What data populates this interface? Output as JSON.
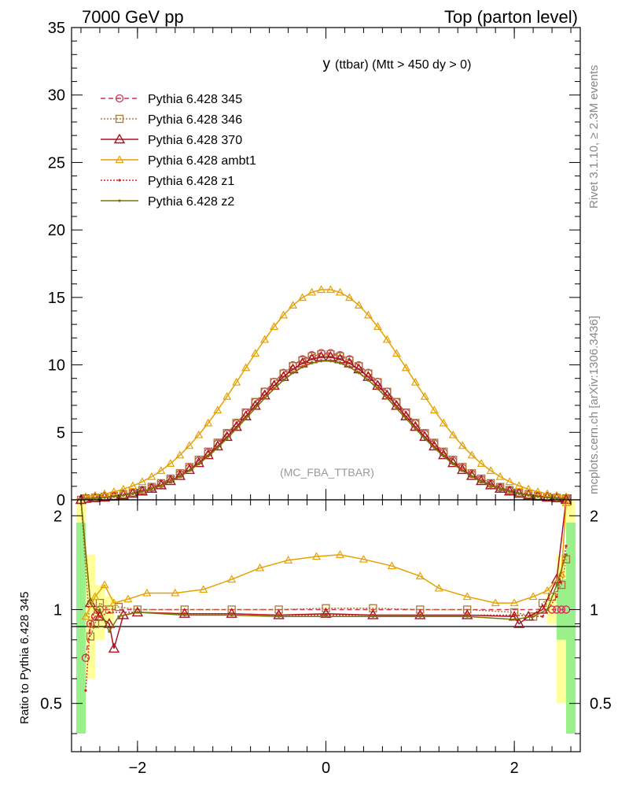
{
  "header": {
    "left": "7000 GeV pp",
    "right": "Top (parton level)"
  },
  "side_text": {
    "top": "Rivet 3.1.10, ≥ 2.3M events",
    "bottom": "mcplots.cern.ch [arXiv:1306.3436]"
  },
  "chart_data": {
    "type": "line",
    "title": "y (ttbar) (Mtt > 450 dy > 0)",
    "title_main": "y",
    "title_sub": "(ttbar) (Mtt > 450 dy > 0)",
    "watermark": "(MC_FBA_TTBAR)",
    "main_panel": {
      "ylim": [
        0,
        35
      ],
      "yticks": [
        "0",
        "5",
        "10",
        "15",
        "20",
        "25",
        "30",
        "35"
      ]
    },
    "ratio_panel": {
      "ylabel": "Ratio to Pythia 6.428 345",
      "ylim": [
        0.35,
        2.25
      ],
      "yscale": "log",
      "yticks": [
        "0.5",
        "1",
        "2"
      ]
    },
    "xlim": [
      -2.7,
      2.7
    ],
    "xticks": [
      "−2",
      "0",
      "2"
    ],
    "legend_position": "top-left",
    "series": [
      {
        "name": "Pythia 6.428 345",
        "color": "#cc3355",
        "marker": "circle-open",
        "dash": "6,4",
        "peak": 10.9,
        "sigma": 0.83,
        "ratio": [
          [
            -2.55,
            0.7
          ],
          [
            -2.5,
            0.9
          ],
          [
            -2.45,
            0.95
          ],
          [
            -2.4,
            1.0
          ],
          [
            2.4,
            1.0
          ],
          [
            2.45,
            1.0
          ],
          [
            2.5,
            1.0
          ],
          [
            2.55,
            1.0
          ]
        ]
      },
      {
        "name": "Pythia 6.428 346",
        "color": "#aa7733",
        "marker": "square-open",
        "dash": "2,2",
        "peak": 10.8,
        "sigma": 0.84,
        "ratio": [
          [
            -2.6,
            2.3
          ],
          [
            -2.5,
            0.82
          ],
          [
            -2.45,
            0.9
          ],
          [
            -2.4,
            1.05
          ],
          [
            -2.3,
            1.0
          ],
          [
            -2.2,
            1.02
          ],
          [
            -2.0,
            1.0
          ],
          [
            -1.5,
            1.0
          ],
          [
            -1.0,
            1.0
          ],
          [
            -0.5,
            1.0
          ],
          [
            0.0,
            1.01
          ],
          [
            0.5,
            1.01
          ],
          [
            1.0,
            1.0
          ],
          [
            1.5,
            1.0
          ],
          [
            2.0,
            0.98
          ],
          [
            2.2,
            0.95
          ],
          [
            2.3,
            1.05
          ],
          [
            2.4,
            1.1
          ],
          [
            2.5,
            1.2
          ],
          [
            2.55,
            1.45
          ]
        ]
      },
      {
        "name": "Pythia 6.428 370",
        "color": "#aa1122",
        "marker": "triangle-open",
        "dash": "",
        "peak": 10.6,
        "sigma": 0.82,
        "ratio": [
          [
            -2.6,
            2.3
          ],
          [
            -2.5,
            1.05
          ],
          [
            -2.4,
            0.95
          ],
          [
            -2.3,
            0.9
          ],
          [
            -2.25,
            0.75
          ],
          [
            -2.15,
            0.96
          ],
          [
            -2.0,
            0.98
          ],
          [
            -1.5,
            0.97
          ],
          [
            -1.0,
            0.97
          ],
          [
            -0.5,
            0.96
          ],
          [
            0.0,
            0.97
          ],
          [
            0.5,
            0.96
          ],
          [
            1.0,
            0.96
          ],
          [
            1.5,
            0.96
          ],
          [
            2.0,
            0.95
          ],
          [
            2.05,
            0.9
          ],
          [
            2.15,
            0.95
          ],
          [
            2.3,
            1.0
          ],
          [
            2.45,
            1.25
          ],
          [
            2.55,
            2.3
          ]
        ]
      },
      {
        "name": "Pythia 6.428 ambt1",
        "color": "#e8a000",
        "marker": "triangle-open-small",
        "dash": "",
        "peak": 15.6,
        "sigma": 0.88,
        "ratio": [
          [
            -2.55,
            0.95
          ],
          [
            -2.45,
            1.1
          ],
          [
            -2.35,
            1.2
          ],
          [
            -2.25,
            1.05
          ],
          [
            -2.1,
            1.08
          ],
          [
            -1.9,
            1.13
          ],
          [
            -1.6,
            1.13
          ],
          [
            -1.3,
            1.16
          ],
          [
            -1.0,
            1.25
          ],
          [
            -0.7,
            1.36
          ],
          [
            -0.4,
            1.44
          ],
          [
            -0.1,
            1.48
          ],
          [
            0.15,
            1.5
          ],
          [
            0.4,
            1.45
          ],
          [
            0.7,
            1.38
          ],
          [
            1.0,
            1.28
          ],
          [
            1.2,
            1.17
          ],
          [
            1.5,
            1.1
          ],
          [
            1.8,
            1.05
          ],
          [
            2.0,
            1.05
          ],
          [
            2.2,
            1.1
          ],
          [
            2.35,
            1.15
          ],
          [
            2.5,
            1.3
          ],
          [
            2.55,
            2.2
          ]
        ]
      },
      {
        "name": "Pythia 6.428 z1",
        "color": "#dd2222",
        "marker": "dot",
        "dash": "2,2",
        "peak": 10.35,
        "sigma": 0.82,
        "ratio": [
          [
            -2.55,
            0.55
          ],
          [
            -2.5,
            0.9
          ],
          [
            -2.45,
            1.0
          ],
          [
            -2.4,
            0.95
          ],
          [
            -2.3,
            0.98
          ],
          [
            -2.0,
            0.98
          ],
          [
            -1.5,
            0.97
          ],
          [
            -1.0,
            0.97
          ],
          [
            -0.5,
            0.96
          ],
          [
            0.0,
            0.96
          ],
          [
            0.5,
            0.96
          ],
          [
            1.0,
            0.96
          ],
          [
            1.5,
            0.96
          ],
          [
            2.0,
            0.96
          ],
          [
            2.3,
            0.95
          ],
          [
            2.45,
            1.1
          ],
          [
            2.55,
            1.6
          ]
        ]
      },
      {
        "name": "Pythia 6.428 z2",
        "color": "#777700",
        "marker": "dot",
        "dash": "",
        "peak": 10.3,
        "sigma": 0.82,
        "ratio": [
          [
            -2.6,
            2.3
          ],
          [
            -2.5,
            1.05
          ],
          [
            -2.45,
            1.0
          ],
          [
            -2.4,
            1.0
          ],
          [
            -2.3,
            0.85
          ],
          [
            -2.2,
            0.95
          ],
          [
            -2.0,
            0.98
          ],
          [
            -1.5,
            0.96
          ],
          [
            -1.0,
            0.96
          ],
          [
            -0.5,
            0.95
          ],
          [
            0.0,
            0.95
          ],
          [
            0.5,
            0.95
          ],
          [
            1.0,
            0.95
          ],
          [
            1.5,
            0.95
          ],
          [
            2.0,
            0.93
          ],
          [
            2.2,
            0.95
          ],
          [
            2.35,
            1.0
          ],
          [
            2.45,
            1.2
          ],
          [
            2.55,
            1.5
          ]
        ]
      }
    ]
  }
}
